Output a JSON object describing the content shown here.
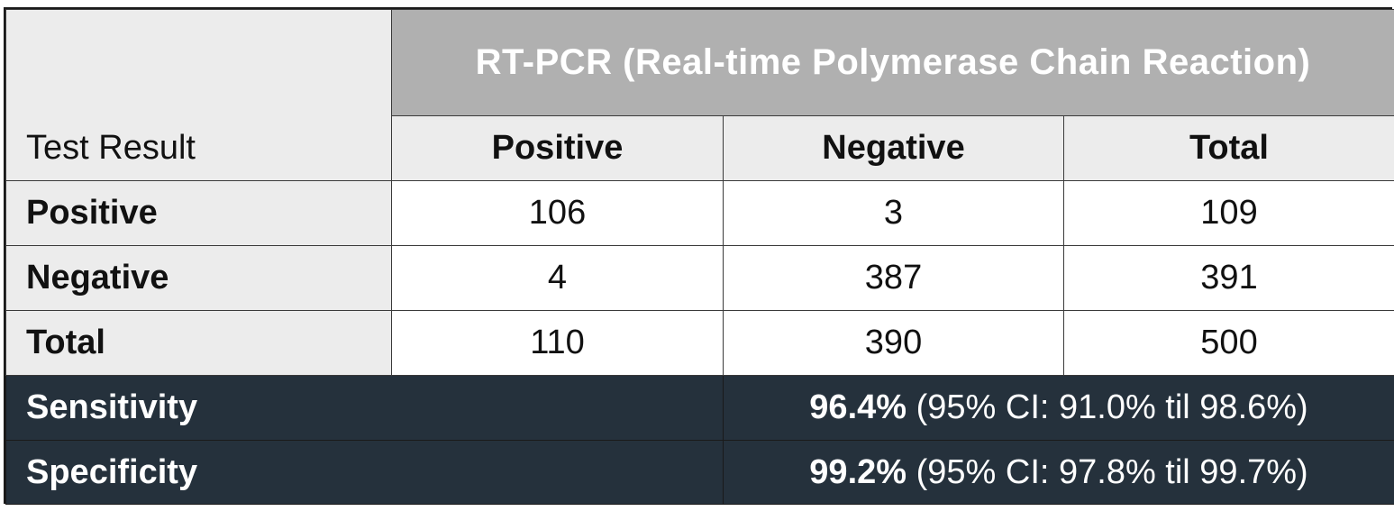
{
  "header": {
    "corner_label": "Test Result",
    "group_title": "RT-PCR (Real-time Polymerase Chain Reaction)",
    "columns": [
      "Positive",
      "Negative",
      "Total"
    ]
  },
  "rows": [
    {
      "label": "Positive",
      "values": [
        "106",
        "3",
        "109"
      ]
    },
    {
      "label": "Negative",
      "values": [
        "4",
        "387",
        "391"
      ]
    },
    {
      "label": "Total",
      "values": [
        "110",
        "390",
        "500"
      ]
    }
  ],
  "stats": [
    {
      "label": "Sensitivity",
      "value": "96.4%",
      "ci": "(95% CI: 91.0% til 98.6%)"
    },
    {
      "label": "Specificity",
      "value": "99.2%",
      "ci": "(95% CI: 97.8% til 99.7%)"
    }
  ],
  "colors": {
    "header_bg": "#b0b0b0",
    "light_bg": "#ececec",
    "stats_bg": "#25313c"
  }
}
